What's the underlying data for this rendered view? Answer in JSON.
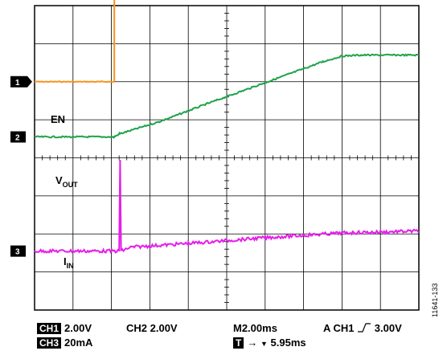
{
  "chart_data": {
    "type": "line",
    "title": "",
    "grid": true,
    "divisions": {
      "x": 10,
      "y": 8
    },
    "x_range_ms": [
      0,
      20
    ],
    "series": [
      {
        "name": "EN",
        "label": "EN",
        "channel": "1",
        "color": "#f7931e",
        "unit": "V",
        "volts_per_div": 2.0,
        "ground_div": 2.0,
        "x": [
          0,
          4.15,
          4.15,
          20
        ],
        "y": [
          0,
          0,
          5.0,
          5.0
        ]
      },
      {
        "name": "VOUT",
        "label": "V",
        "label_sub": "OUT",
        "channel": "2",
        "color": "#1ea34a",
        "unit": "V",
        "volts_per_div": 2.0,
        "ground_div": 3.45,
        "x": [
          0,
          4.15,
          4.4,
          6.5,
          9,
          12,
          15,
          16,
          17,
          20
        ],
        "y": [
          0,
          0,
          0.15,
          0.8,
          1.75,
          2.85,
          3.95,
          4.25,
          4.3,
          4.3
        ]
      },
      {
        "name": "IIN",
        "label": "I",
        "label_sub": "IN",
        "channel": "3",
        "color": "#e61eeb",
        "unit": "mA",
        "ma_per_div": 20,
        "ground_div": 6.45,
        "x": [
          0,
          4.4,
          4.45,
          4.5,
          5,
          8,
          12,
          16,
          20
        ],
        "y": [
          0,
          0,
          48,
          0,
          2,
          4,
          7,
          9.5,
          10.5
        ]
      }
    ]
  },
  "markers": [
    "1",
    "2",
    "3"
  ],
  "status": {
    "ch1_badge": "CH1",
    "ch1_scale": "2.00V",
    "ch2": "CH2 2.00V",
    "timebase": "M2.00ms",
    "trigger_prefix": "A  CH1",
    "trigger_level": "3.00V",
    "ch3_badge": "CH3",
    "ch3_scale": "20mA",
    "t_badge": "T",
    "t_offset": "5.95ms"
  },
  "figure_id": "11641-133"
}
